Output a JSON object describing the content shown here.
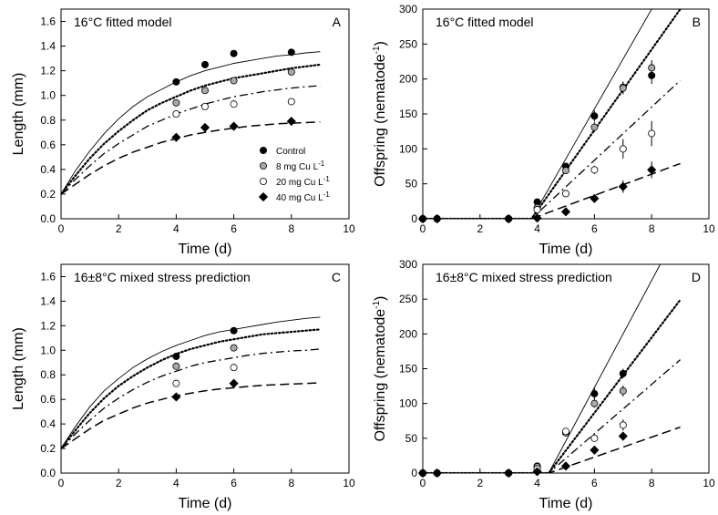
{
  "figure": {
    "legend": {
      "panel": "A",
      "placement": "lower-right",
      "entries": [
        {
          "series": "control",
          "text": "Control",
          "marker": "filled-black"
        },
        {
          "series": "cu8",
          "text": "8 mg Cu L",
          "sup": "-1",
          "marker": "filled-gray"
        },
        {
          "series": "cu20",
          "text": "20 mg Cu L",
          "sup": "-1",
          "marker": "open-white"
        },
        {
          "series": "cu40",
          "text": "40 mg Cu L",
          "sup": "-1",
          "marker": "diamond-black"
        }
      ]
    },
    "styles": {
      "control": {
        "dash": "none",
        "width": 0.9,
        "marker": "circle",
        "fill": "#000000"
      },
      "cu8": {
        "dash": "dotted",
        "width": 2.2,
        "marker": "circle",
        "fill": "#a8a8a8"
      },
      "cu20": {
        "dash": "longdash-dot",
        "width": 1.3,
        "marker": "circle",
        "fill": "#ffffff"
      },
      "cu40": {
        "dash": "longdash",
        "width": 1.5,
        "marker": "diamond",
        "fill": "#000000"
      }
    }
  },
  "chart_data": [
    {
      "id": "A",
      "type": "line",
      "title": "16°C fitted model",
      "letter": "A",
      "xlabel": "Time (d)",
      "ylabel": "Length (mm)",
      "xlim": [
        0,
        10
      ],
      "ylim": [
        0,
        1.7
      ],
      "xticks": [
        0,
        2,
        4,
        6,
        8,
        10
      ],
      "yticks": [
        0.0,
        0.2,
        0.4,
        0.6,
        0.8,
        1.0,
        1.2,
        1.4,
        1.6
      ],
      "ytick_labels": [
        "0.0",
        "0.2",
        "0.4",
        "0.6",
        "0.8",
        "1.0",
        "1.2",
        "1.4",
        "1.6"
      ],
      "grid": false,
      "model_curves": [
        {
          "series": "control",
          "x": [
            0,
            0.5,
            1,
            1.5,
            2,
            2.5,
            3,
            3.5,
            4,
            4.5,
            5,
            5.5,
            6,
            6.5,
            7,
            7.5,
            8,
            8.5,
            9
          ],
          "y": [
            0.2,
            0.39,
            0.55,
            0.69,
            0.81,
            0.91,
            0.99,
            1.05,
            1.11,
            1.16,
            1.2,
            1.23,
            1.26,
            1.28,
            1.3,
            1.32,
            1.33,
            1.345,
            1.355
          ]
        },
        {
          "series": "cu8",
          "x": [
            0,
            0.5,
            1,
            1.5,
            2,
            2.5,
            3,
            3.5,
            4,
            4.5,
            5,
            5.5,
            6,
            6.5,
            7,
            7.5,
            8,
            8.5,
            9
          ],
          "y": [
            0.2,
            0.35,
            0.49,
            0.61,
            0.71,
            0.8,
            0.88,
            0.94,
            0.99,
            1.04,
            1.08,
            1.11,
            1.14,
            1.16,
            1.18,
            1.2,
            1.22,
            1.235,
            1.25
          ]
        },
        {
          "series": "cu20",
          "x": [
            0,
            0.5,
            1,
            1.5,
            2,
            2.5,
            3,
            3.5,
            4,
            4.5,
            5,
            5.5,
            6,
            6.5,
            7,
            7.5,
            8,
            8.5,
            9
          ],
          "y": [
            0.2,
            0.32,
            0.43,
            0.53,
            0.61,
            0.68,
            0.75,
            0.8,
            0.85,
            0.89,
            0.93,
            0.96,
            0.99,
            1.01,
            1.03,
            1.045,
            1.06,
            1.07,
            1.08
          ]
        },
        {
          "series": "cu40",
          "x": [
            0,
            0.5,
            1,
            1.5,
            2,
            2.5,
            3,
            3.5,
            4,
            4.5,
            5,
            5.5,
            6,
            6.5,
            7,
            7.5,
            8,
            8.5,
            9
          ],
          "y": [
            0.2,
            0.28,
            0.36,
            0.43,
            0.49,
            0.54,
            0.58,
            0.62,
            0.65,
            0.68,
            0.7,
            0.72,
            0.735,
            0.75,
            0.76,
            0.77,
            0.775,
            0.78,
            0.785
          ]
        }
      ],
      "observations": [
        {
          "series": "control",
          "x": [
            4,
            5,
            6,
            8
          ],
          "y": [
            1.11,
            1.25,
            1.34,
            1.35
          ]
        },
        {
          "series": "cu8",
          "x": [
            4,
            5,
            6,
            8
          ],
          "y": [
            0.94,
            1.04,
            1.12,
            1.19
          ]
        },
        {
          "series": "cu20",
          "x": [
            4,
            5,
            6,
            8
          ],
          "y": [
            0.85,
            0.91,
            0.93,
            0.95
          ]
        },
        {
          "series": "cu40",
          "x": [
            4,
            5,
            6,
            8
          ],
          "y": [
            0.66,
            0.74,
            0.75,
            0.79
          ]
        }
      ]
    },
    {
      "id": "B",
      "type": "line",
      "title": "16°C fitted model",
      "letter": "B",
      "xlabel": "Time (d)",
      "ylabel": "Offspring (nematode",
      "ylabel_sup": "-1",
      "ylabel_close": ")",
      "xlim": [
        0,
        10
      ],
      "ylim": [
        0,
        300
      ],
      "xticks": [
        0,
        2,
        4,
        6,
        8,
        10
      ],
      "yticks": [
        0,
        50,
        100,
        150,
        200,
        250,
        300
      ],
      "ytick_labels": [
        "0",
        "50",
        "100",
        "150",
        "200",
        "250",
        "300"
      ],
      "grid": false,
      "model_curves": [
        {
          "series": "control",
          "x": [
            0,
            3.8,
            8
          ],
          "y": [
            0,
            0,
            300
          ]
        },
        {
          "series": "cu8",
          "x": [
            0,
            3.8,
            9
          ],
          "y": [
            0,
            0,
            300
          ]
        },
        {
          "series": "cu20",
          "x": [
            0,
            3.8,
            9
          ],
          "y": [
            0,
            0,
            198
          ]
        },
        {
          "series": "cu40",
          "x": [
            0,
            3.8,
            9
          ],
          "y": [
            0,
            0,
            79
          ]
        }
      ],
      "observations": [
        {
          "series": "control",
          "x": [
            0,
            0.5,
            3,
            4,
            5,
            6,
            7,
            8
          ],
          "y": [
            0,
            0,
            0,
            24,
            75,
            147,
            188,
            205
          ],
          "err": [
            0,
            0,
            0,
            2,
            4,
            8,
            8,
            12
          ]
        },
        {
          "series": "cu8",
          "x": [
            0,
            0.5,
            3,
            4,
            5,
            6,
            7,
            8
          ],
          "y": [
            0,
            0,
            0,
            16,
            69,
            131,
            187,
            216
          ],
          "err": [
            0,
            0,
            0,
            2,
            5,
            7,
            9,
            11
          ]
        },
        {
          "series": "cu20",
          "x": [
            0,
            0.5,
            3,
            4,
            5,
            6,
            7,
            8
          ],
          "y": [
            0,
            0,
            0,
            13,
            36,
            70,
            100,
            122
          ],
          "err": [
            0,
            0,
            0,
            2,
            4,
            6,
            14,
            18
          ]
        },
        {
          "series": "cu40",
          "x": [
            0,
            0.5,
            3,
            4,
            5,
            6,
            7,
            8
          ],
          "y": [
            0,
            0,
            0,
            1,
            10,
            29,
            46,
            70
          ],
          "err": [
            0,
            0,
            0,
            1,
            3,
            4,
            9,
            12
          ]
        }
      ]
    },
    {
      "id": "C",
      "type": "line",
      "title": "16±8°C mixed stress prediction",
      "letter": "C",
      "xlabel": "Time (d)",
      "ylabel": "Length (mm)",
      "xlim": [
        0,
        10
      ],
      "ylim": [
        0,
        1.7
      ],
      "xticks": [
        0,
        2,
        4,
        6,
        8,
        10
      ],
      "yticks": [
        0.0,
        0.2,
        0.4,
        0.6,
        0.8,
        1.0,
        1.2,
        1.4,
        1.6
      ],
      "ytick_labels": [
        "0.0",
        "0.2",
        "0.4",
        "0.6",
        "0.8",
        "1.0",
        "1.2",
        "1.4",
        "1.6"
      ],
      "grid": false,
      "model_curves": [
        {
          "series": "control",
          "x": [
            0,
            0.5,
            1,
            1.5,
            2,
            2.5,
            3,
            3.5,
            4,
            4.5,
            5,
            5.5,
            6,
            6.5,
            7,
            7.5,
            8,
            8.5,
            9
          ],
          "y": [
            0.2,
            0.38,
            0.54,
            0.67,
            0.77,
            0.86,
            0.93,
            0.99,
            1.04,
            1.08,
            1.12,
            1.15,
            1.17,
            1.19,
            1.21,
            1.23,
            1.245,
            1.26,
            1.27
          ]
        },
        {
          "series": "cu8",
          "x": [
            0,
            0.5,
            1,
            1.5,
            2,
            2.5,
            3,
            3.5,
            4,
            4.5,
            5,
            5.5,
            6,
            6.5,
            7,
            7.5,
            8,
            8.5,
            9
          ],
          "y": [
            0.2,
            0.35,
            0.49,
            0.61,
            0.71,
            0.79,
            0.86,
            0.92,
            0.97,
            1.01,
            1.04,
            1.07,
            1.09,
            1.11,
            1.13,
            1.14,
            1.15,
            1.16,
            1.17
          ]
        },
        {
          "series": "cu20",
          "x": [
            0,
            0.5,
            1,
            1.5,
            2,
            2.5,
            3,
            3.5,
            4,
            4.5,
            5,
            5.5,
            6,
            6.5,
            7,
            7.5,
            8,
            8.5,
            9
          ],
          "y": [
            0.2,
            0.32,
            0.43,
            0.53,
            0.61,
            0.68,
            0.74,
            0.79,
            0.83,
            0.87,
            0.9,
            0.92,
            0.94,
            0.96,
            0.975,
            0.985,
            0.995,
            1.0,
            1.01
          ]
        },
        {
          "series": "cu40",
          "x": [
            0,
            0.5,
            1,
            1.5,
            2,
            2.5,
            3,
            3.5,
            4,
            4.5,
            5,
            5.5,
            6,
            6.5,
            7,
            7.5,
            8,
            8.5,
            9
          ],
          "y": [
            0.2,
            0.28,
            0.36,
            0.43,
            0.48,
            0.53,
            0.57,
            0.6,
            0.63,
            0.65,
            0.67,
            0.685,
            0.695,
            0.705,
            0.715,
            0.72,
            0.725,
            0.73,
            0.735
          ]
        }
      ],
      "observations": [
        {
          "series": "control",
          "x": [
            4,
            6
          ],
          "y": [
            0.95,
            1.16
          ]
        },
        {
          "series": "cu8",
          "x": [
            4,
            6
          ],
          "y": [
            0.87,
            1.02
          ]
        },
        {
          "series": "cu20",
          "x": [
            4,
            6
          ],
          "y": [
            0.73,
            0.86
          ]
        },
        {
          "series": "cu40",
          "x": [
            4,
            6
          ],
          "y": [
            0.62,
            0.73
          ]
        }
      ]
    },
    {
      "id": "D",
      "type": "line",
      "title": "16±8°C mixed stress prediction",
      "letter": "D",
      "xlabel": "Time (d)",
      "ylabel": "Offspring (nematode",
      "ylabel_sup": "-1",
      "ylabel_close": ")",
      "xlim": [
        0,
        10
      ],
      "ylim": [
        0,
        300
      ],
      "xticks": [
        0,
        2,
        4,
        6,
        8,
        10
      ],
      "yticks": [
        0,
        50,
        100,
        150,
        200,
        250,
        300
      ],
      "ytick_labels": [
        "0",
        "50",
        "100",
        "150",
        "200",
        "250",
        "300"
      ],
      "grid": false,
      "model_curves": [
        {
          "series": "control",
          "x": [
            0,
            4.4,
            8.3
          ],
          "y": [
            0,
            0,
            300
          ]
        },
        {
          "series": "cu8",
          "x": [
            0,
            4.4,
            9
          ],
          "y": [
            0,
            0,
            249
          ]
        },
        {
          "series": "cu20",
          "x": [
            0,
            4.4,
            9
          ],
          "y": [
            0,
            0,
            163
          ]
        },
        {
          "series": "cu40",
          "x": [
            0,
            4.4,
            9
          ],
          "y": [
            0,
            0,
            66
          ]
        }
      ],
      "observations": [
        {
          "series": "control",
          "x": [
            0,
            0.5,
            3,
            4,
            5,
            6,
            7
          ],
          "y": [
            0,
            0,
            0,
            10,
            58,
            114,
            143
          ],
          "err": [
            0,
            0,
            0,
            2,
            4,
            8,
            7
          ]
        },
        {
          "series": "cu8",
          "x": [
            0,
            0.5,
            3,
            4,
            5,
            6,
            7
          ],
          "y": [
            0,
            0,
            0,
            9,
            58,
            100,
            118
          ],
          "err": [
            0,
            0,
            0,
            2,
            4,
            6,
            8
          ]
        },
        {
          "series": "cu20",
          "x": [
            0,
            0.5,
            3,
            4,
            5,
            6,
            7
          ],
          "y": [
            0,
            0,
            0,
            6,
            60,
            50,
            69
          ],
          "err": [
            0,
            0,
            0,
            2,
            4,
            5,
            8
          ]
        },
        {
          "series": "cu40",
          "x": [
            0,
            0.5,
            3,
            4,
            5,
            6,
            7
          ],
          "y": [
            0,
            0,
            0,
            2,
            10,
            33,
            53
          ],
          "err": [
            0,
            0,
            0,
            1,
            2,
            4,
            6
          ]
        }
      ]
    }
  ]
}
